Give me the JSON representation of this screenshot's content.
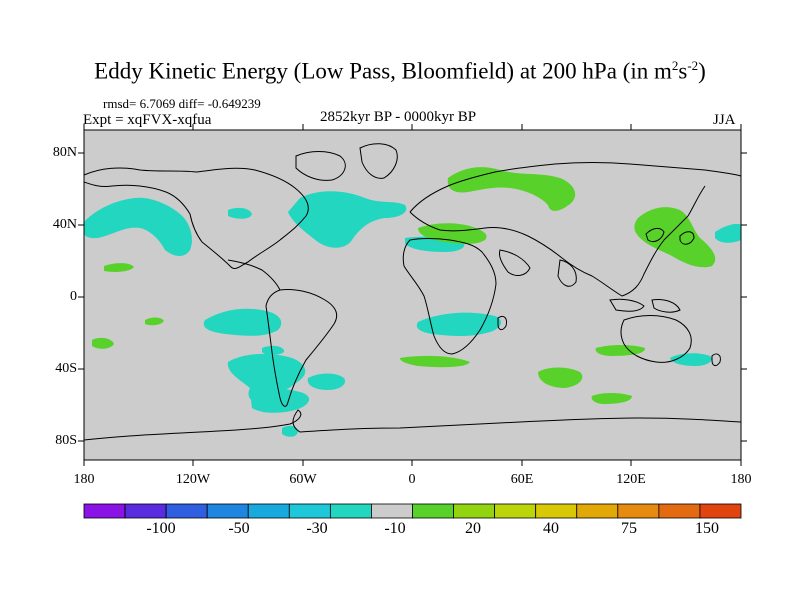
{
  "title": "Eddy Kinetic Energy (Low Pass, Bloomfield) at 200 hPa (in m",
  "title_units": {
    "sup1": "2",
    "mid": "s",
    "sup2": "-2",
    "close": ")"
  },
  "stats": "rmsd= 6.7069 diff= -0.649239",
  "expt": "Expt = xqFVX-xqfua",
  "period": "2852kyr BP - 0000kyr BP",
  "season": "JJA",
  "lat_ticks": [
    "80N",
    "40N",
    "0",
    "40S",
    "80S"
  ],
  "lon_ticks": [
    "180",
    "120W",
    "60W",
    "0",
    "60E",
    "120E",
    "180"
  ],
  "colorbar": {
    "colors": [
      "#8a13e6",
      "#5a2ce0",
      "#2f5fe0",
      "#1e86e0",
      "#18aadc",
      "#1ec8d8",
      "#22d6c0",
      "#cccccc",
      "#58d22a",
      "#92d410",
      "#bcd40a",
      "#d8c808",
      "#e2a808",
      "#e68a10",
      "#e46a12",
      "#e24410"
    ],
    "labels": [
      "-100",
      "-50",
      "-30",
      "-10",
      "20",
      "40",
      "75",
      "150"
    ]
  },
  "anomaly_colors": {
    "negative": "#22d6c0",
    "positive": "#58d22a",
    "background": "#cccccc",
    "coast": "#000000"
  }
}
